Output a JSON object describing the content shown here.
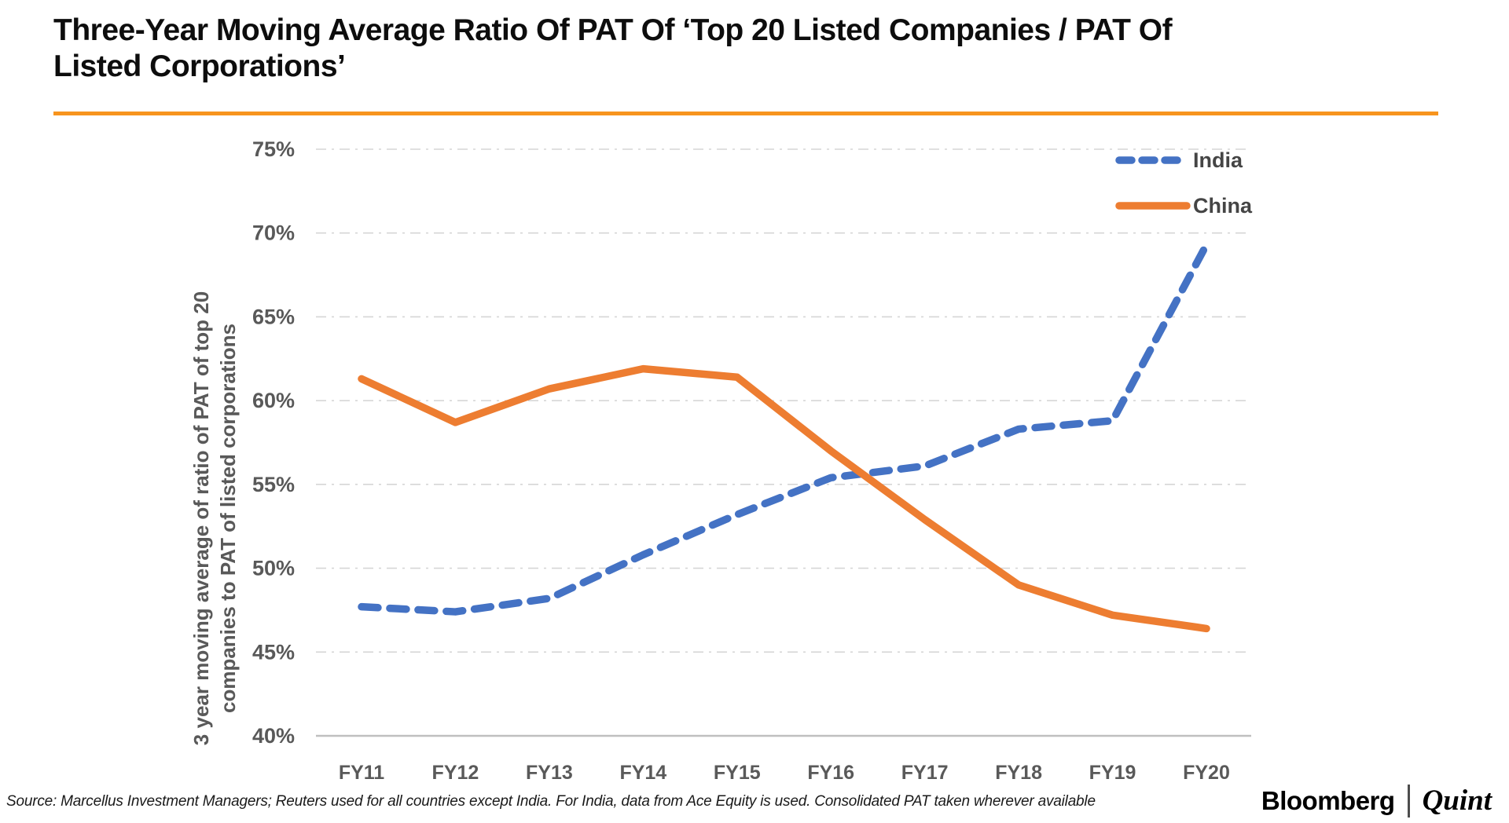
{
  "header": {
    "title_line1": "Three-Year Moving Average Ratio Of PAT Of ‘Top 20 Listed Companies / PAT Of",
    "title_line2": "Listed Corporations’",
    "accent_color": "#F7941E"
  },
  "chart_data": {
    "type": "line",
    "categories": [
      "FY11",
      "FY12",
      "FY13",
      "FY14",
      "FY15",
      "FY16",
      "FY17",
      "FY18",
      "FY19",
      "FY20"
    ],
    "series": [
      {
        "name": "India",
        "color": "#4472C4",
        "style": "dashed",
        "values": [
          47.7,
          47.4,
          48.2,
          50.8,
          53.2,
          55.4,
          56.1,
          58.3,
          58.8,
          69.3
        ]
      },
      {
        "name": "China",
        "color": "#ED7D31",
        "style": "solid",
        "values": [
          61.3,
          58.7,
          60.7,
          61.9,
          61.4,
          57.0,
          52.9,
          49.0,
          47.2,
          46.4
        ]
      }
    ],
    "ylabel_line1": "3 year moving average of ratio of PAT of top 20",
    "ylabel_line2": "companies to PAT of listed corporations",
    "yticks": [
      "75%",
      "70%",
      "65%",
      "60%",
      "55%",
      "50%",
      "45%",
      "40%"
    ],
    "ylim": [
      40,
      75
    ],
    "ytick_step": 5,
    "grid": "horizontal dash-dot",
    "legend_position": "top-right",
    "axis_text_color": "#595959",
    "gridline_color": "#D6D6D6",
    "axisline_color": "#BFBFBF"
  },
  "footer": {
    "source": "Source: Marcellus Investment Managers; Reuters used for all countries except India. For India, data from Ace Equity is used. Consolidated PAT taken wherever available",
    "brand_primary": "Bloomberg",
    "brand_secondary": "Quint"
  }
}
